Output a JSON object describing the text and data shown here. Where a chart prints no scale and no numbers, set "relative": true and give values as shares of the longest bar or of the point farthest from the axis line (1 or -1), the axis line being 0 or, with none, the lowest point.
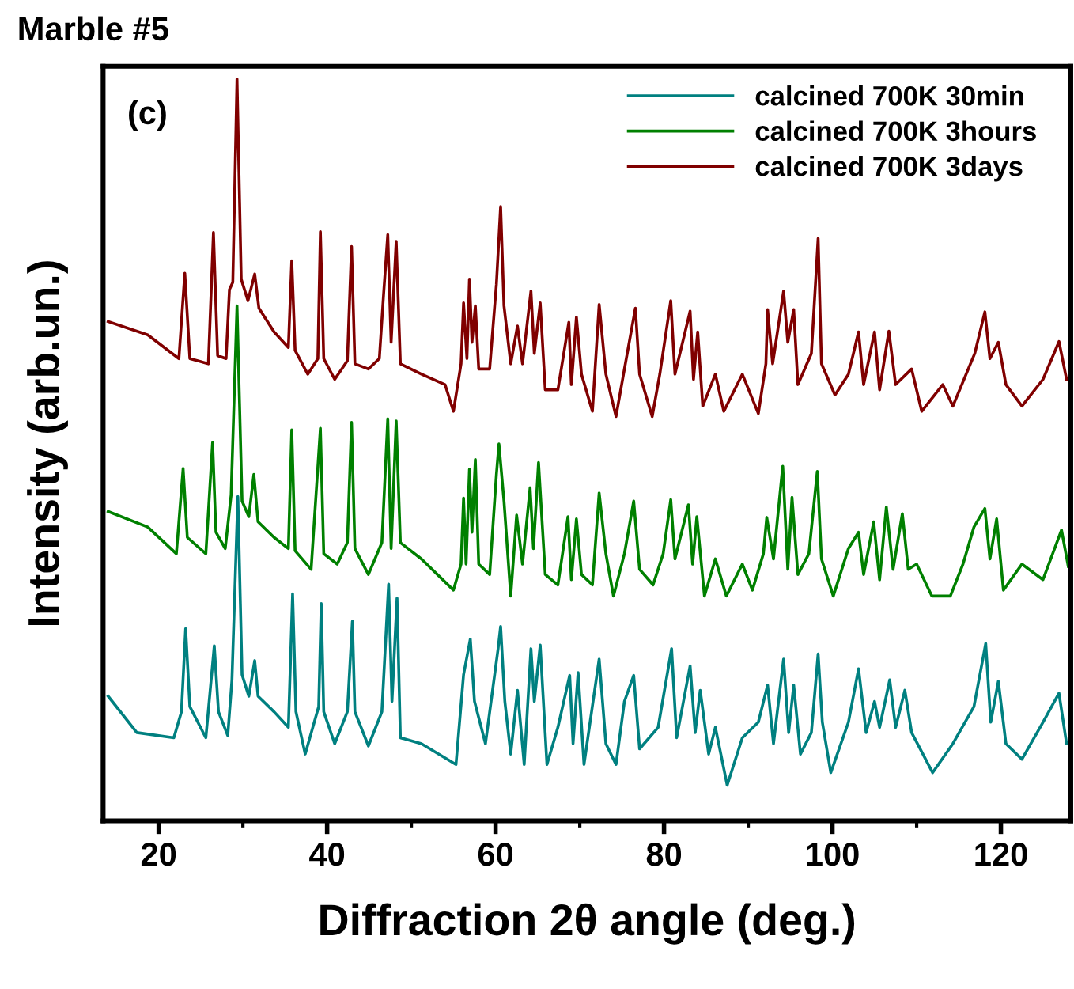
{
  "chart_data": {
    "type": "line",
    "title": "Marble #5",
    "xlabel": "Diffraction 2θ angle (deg.)",
    "ylabel": "Intensity (arb.un.)",
    "annotations": [
      "(c)"
    ],
    "relative": true,
    "xlim": [
      13.4,
      128.3
    ],
    "xticks": [
      20,
      {
        "value": 30,
        "label": null
      },
      40,
      {
        "value": 50,
        "label": null
      },
      60,
      {
        "value": 70,
        "label": null
      },
      80,
      {
        "value": 90,
        "label": null
      },
      100,
      {
        "value": 110,
        "label": null
      },
      120
    ],
    "tick_labels": "x",
    "grid": false,
    "legend": "top right",
    "marker": "none",
    "line_style": "solid",
    "series": [
      {
        "name": "calcined 700K 30min",
        "color": "#008080",
        "x": [
          14.0,
          17.4,
          21.8,
          22.7,
          23.2,
          23.7,
          25.6,
          26.6,
          27.1,
          28.2,
          28.7,
          29.4,
          29.9,
          30.7,
          31.4,
          31.8,
          33.7,
          35.4,
          35.9,
          36.3,
          37.4,
          39.0,
          39.3,
          39.6,
          40.9,
          42.4,
          43.0,
          43.3,
          44.9,
          46.5,
          46.8,
          47.3,
          47.7,
          48.3,
          48.7,
          51.2,
          55.3,
          56.2,
          57.0,
          57.5,
          58.8,
          60.3,
          60.6,
          61.1,
          61.8,
          62.6,
          63.4,
          64.2,
          64.6,
          65.3,
          66.1,
          67.4,
          68.8,
          69.2,
          69.8,
          70.5,
          72.3,
          73.1,
          74.3,
          75.3,
          76.4,
          77.1,
          79.3,
          80.9,
          81.5,
          83.1,
          83.7,
          84.3,
          85.3,
          86.1,
          87.5,
          89.3,
          91.2,
          92.3,
          93.0,
          94.2,
          94.8,
          95.4,
          96.2,
          97.5,
          98.3,
          98.8,
          99.8,
          101.9,
          103.1,
          104.0,
          105.0,
          105.6,
          106.8,
          107.5,
          108.6,
          109.4,
          111.9,
          114.3,
          116.8,
          118.2,
          118.8,
          119.7,
          120.6,
          122.5,
          125.0,
          126.9,
          127.8
        ],
        "values": [
          0.168,
          0.119,
          0.112,
          0.147,
          0.259,
          0.154,
          0.112,
          0.236,
          0.147,
          0.115,
          0.19,
          0.437,
          0.197,
          0.168,
          0.216,
          0.168,
          0.147,
          0.126,
          0.306,
          0.147,
          0.09,
          0.154,
          0.293,
          0.147,
          0.104,
          0.147,
          0.269,
          0.147,
          0.101,
          0.147,
          0.211,
          0.319,
          0.161,
          0.3,
          0.112,
          0.104,
          0.076,
          0.197,
          0.245,
          0.161,
          0.104,
          0.232,
          0.262,
          0.161,
          0.09,
          0.176,
          0.076,
          0.232,
          0.161,
          0.237,
          0.076,
          0.126,
          0.196,
          0.104,
          0.2,
          0.076,
          0.218,
          0.104,
          0.076,
          0.161,
          0.196,
          0.097,
          0.126,
          0.232,
          0.112,
          0.209,
          0.119,
          0.176,
          0.09,
          0.126,
          0.048,
          0.112,
          0.133,
          0.183,
          0.104,
          0.218,
          0.119,
          0.183,
          0.09,
          0.119,
          0.225,
          0.133,
          0.065,
          0.133,
          0.205,
          0.119,
          0.161,
          0.126,
          0.19,
          0.126,
          0.176,
          0.119,
          0.065,
          0.104,
          0.154,
          0.239,
          0.133,
          0.188,
          0.104,
          0.083,
          0.133,
          0.172,
          0.104
        ]
      },
      {
        "name": "calcined 700K 3hours",
        "color": "#008000",
        "x": [
          14.0,
          18.7,
          22.1,
          22.9,
          23.4,
          25.6,
          26.4,
          26.8,
          27.9,
          28.6,
          29.3,
          29.9,
          30.7,
          31.3,
          31.8,
          33.7,
          35.4,
          35.8,
          36.2,
          38.1,
          39.2,
          39.6,
          41.2,
          42.4,
          42.9,
          43.3,
          44.9,
          46.5,
          46.8,
          47.2,
          47.6,
          48.2,
          48.7,
          51.2,
          55.0,
          55.9,
          56.2,
          56.5,
          56.9,
          57.2,
          57.6,
          58.0,
          59.3,
          60.1,
          60.4,
          61.0,
          61.8,
          62.5,
          63.2,
          64.1,
          64.5,
          65.1,
          65.9,
          67.4,
          68.6,
          69.0,
          69.6,
          70.2,
          71.5,
          72.3,
          73.1,
          74.0,
          75.3,
          76.4,
          77.1,
          78.7,
          79.9,
          80.8,
          81.3,
          82.9,
          83.4,
          83.9,
          84.8,
          86.1,
          87.4,
          89.3,
          90.5,
          91.8,
          92.2,
          93.0,
          94.1,
          94.7,
          95.2,
          95.9,
          97.2,
          98.2,
          98.7,
          100.1,
          101.9,
          103.1,
          103.7,
          104.9,
          105.6,
          106.4,
          107.2,
          108.3,
          109.0,
          110.0,
          111.8,
          114.0,
          115.5,
          116.8,
          118.1,
          118.7,
          119.5,
          120.3,
          122.5,
          125.0,
          127.2,
          128.0
        ],
        "values": [
          0.417,
          0.396,
          0.36,
          0.475,
          0.382,
          0.36,
          0.51,
          0.389,
          0.367,
          0.439,
          0.694,
          0.431,
          0.41,
          0.467,
          0.403,
          0.382,
          0.367,
          0.527,
          0.364,
          0.339,
          0.529,
          0.36,
          0.346,
          0.375,
          0.537,
          0.367,
          0.332,
          0.375,
          0.446,
          0.542,
          0.367,
          0.539,
          0.375,
          0.353,
          0.311,
          0.346,
          0.435,
          0.346,
          0.474,
          0.389,
          0.487,
          0.346,
          0.332,
          0.467,
          0.508,
          0.431,
          0.303,
          0.412,
          0.346,
          0.449,
          0.367,
          0.483,
          0.332,
          0.318,
          0.41,
          0.325,
          0.407,
          0.332,
          0.318,
          0.442,
          0.36,
          0.303,
          0.36,
          0.431,
          0.339,
          0.318,
          0.36,
          0.433,
          0.353,
          0.426,
          0.346,
          0.41,
          0.303,
          0.353,
          0.303,
          0.346,
          0.311,
          0.36,
          0.409,
          0.353,
          0.478,
          0.339,
          0.436,
          0.332,
          0.36,
          0.471,
          0.353,
          0.303,
          0.367,
          0.389,
          0.332,
          0.403,
          0.325,
          0.423,
          0.339,
          0.414,
          0.339,
          0.346,
          0.303,
          0.303,
          0.346,
          0.396,
          0.421,
          0.353,
          0.407,
          0.311,
          0.346,
          0.325,
          0.392,
          0.343
        ]
      },
      {
        "name": "calcined 700K 3days",
        "color": "#800000",
        "x": [
          14.0,
          18.7,
          22.4,
          23.1,
          23.7,
          25.9,
          26.5,
          27.0,
          28.0,
          28.4,
          28.8,
          29.3,
          29.8,
          30.6,
          31.4,
          31.9,
          33.7,
          35.4,
          35.8,
          36.2,
          37.7,
          38.9,
          39.2,
          39.6,
          40.9,
          42.4,
          42.9,
          43.3,
          44.9,
          46.2,
          46.7,
          47.2,
          47.6,
          48.2,
          48.7,
          51.2,
          54.0,
          55.0,
          55.9,
          56.2,
          56.6,
          56.9,
          57.2,
          57.6,
          58.0,
          59.3,
          60.1,
          60.6,
          61.0,
          61.8,
          62.6,
          63.2,
          64.2,
          64.6,
          65.3,
          65.9,
          67.4,
          68.7,
          69.0,
          69.6,
          70.2,
          71.5,
          72.3,
          73.1,
          74.3,
          75.3,
          76.6,
          77.1,
          78.6,
          79.5,
          80.8,
          81.3,
          83.1,
          83.5,
          84.0,
          84.6,
          86.1,
          87.1,
          89.3,
          91.2,
          92.1,
          92.3,
          92.9,
          94.2,
          94.7,
          95.4,
          95.9,
          97.5,
          98.3,
          98.7,
          100.3,
          101.9,
          103.1,
          103.7,
          105.0,
          105.6,
          106.7,
          107.5,
          109.4,
          110.6,
          113.1,
          114.3,
          116.9,
          118.1,
          118.7,
          119.7,
          120.6,
          122.5,
          125.0,
          126.9,
          127.8
        ],
        "values": [
          0.673,
          0.655,
          0.623,
          0.738,
          0.623,
          0.616,
          0.793,
          0.627,
          0.623,
          0.716,
          0.726,
          1.0,
          0.73,
          0.701,
          0.737,
          0.691,
          0.659,
          0.638,
          0.755,
          0.634,
          0.602,
          0.623,
          0.794,
          0.623,
          0.595,
          0.62,
          0.774,
          0.616,
          0.609,
          0.623,
          0.709,
          0.79,
          0.645,
          0.781,
          0.616,
          0.602,
          0.588,
          0.552,
          0.616,
          0.698,
          0.623,
          0.73,
          0.645,
          0.694,
          0.609,
          0.609,
          0.723,
          0.828,
          0.694,
          0.616,
          0.667,
          0.616,
          0.714,
          0.63,
          0.698,
          0.581,
          0.581,
          0.672,
          0.588,
          0.679,
          0.602,
          0.552,
          0.696,
          0.602,
          0.545,
          0.609,
          0.691,
          0.602,
          0.545,
          0.602,
          0.701,
          0.602,
          0.687,
          0.595,
          0.659,
          0.559,
          0.602,
          0.552,
          0.602,
          0.549,
          0.616,
          0.689,
          0.616,
          0.714,
          0.645,
          0.689,
          0.588,
          0.63,
          0.785,
          0.616,
          0.574,
          0.602,
          0.659,
          0.588,
          0.659,
          0.581,
          0.66,
          0.588,
          0.609,
          0.552,
          0.588,
          0.559,
          0.63,
          0.686,
          0.623,
          0.645,
          0.588,
          0.559,
          0.595,
          0.646,
          0.595
        ]
      }
    ]
  }
}
